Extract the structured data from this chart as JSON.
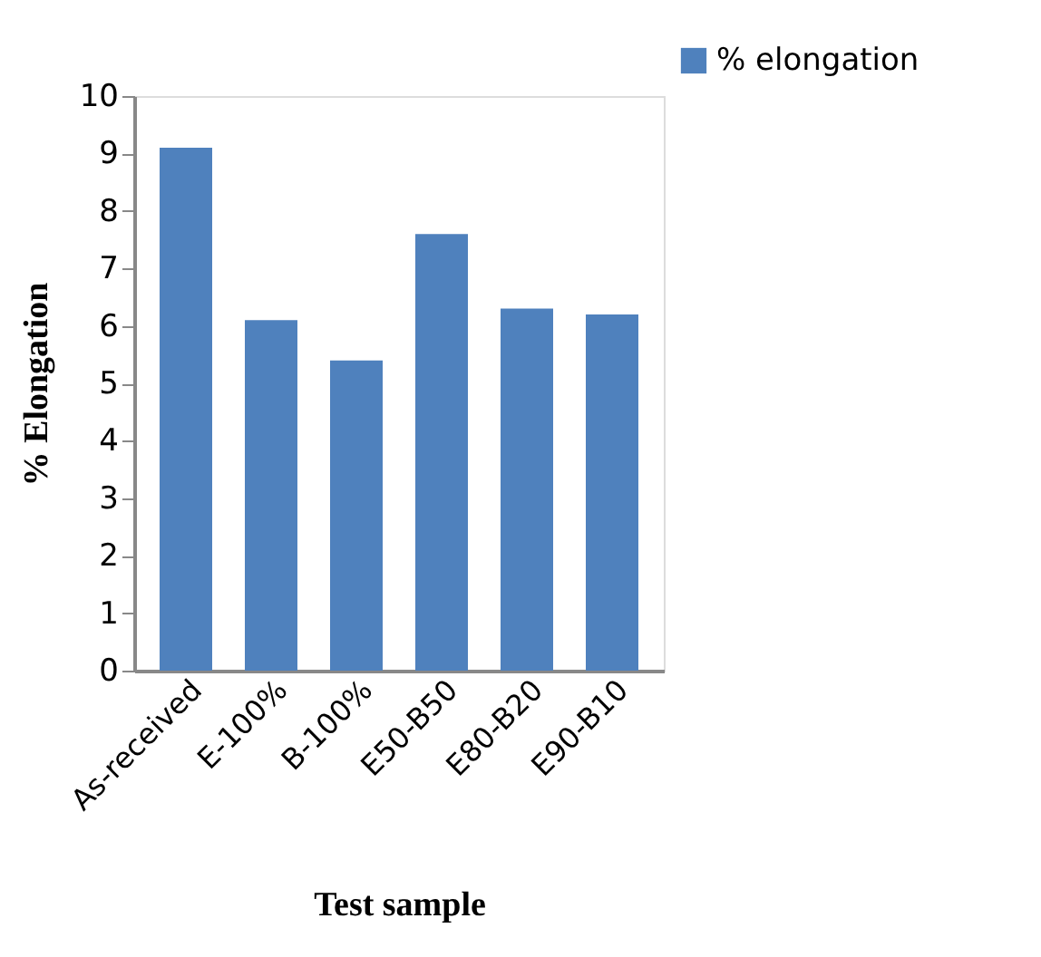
{
  "chart_data": {
    "type": "bar",
    "xlabel": "Test sample",
    "ylabel": "% Elongation",
    "categories": [
      "As-received",
      "E-100%",
      "B-100%",
      "E50-B50",
      "E80-B20",
      "E90-B10"
    ],
    "series": [
      {
        "name": "% elongation",
        "color": "#4f81bd",
        "values": [
          9.1,
          6.1,
          5.4,
          7.6,
          6.3,
          6.2
        ]
      }
    ],
    "ylim": [
      0,
      10
    ],
    "yticks": [
      0,
      1,
      2,
      3,
      4,
      5,
      6,
      7,
      8,
      9,
      10
    ],
    "grid": false,
    "legend": "top right"
  }
}
